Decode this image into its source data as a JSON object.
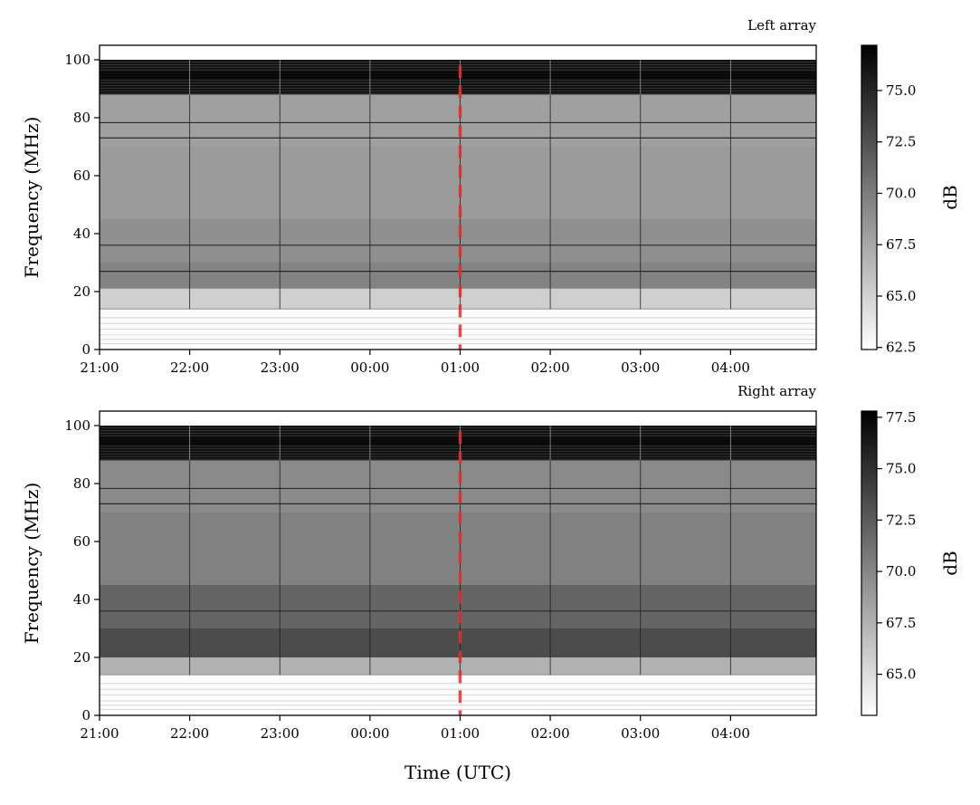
{
  "chart_data": [
    {
      "type": "heatmap",
      "title": "Left array",
      "xlabel": "",
      "ylabel": "Frequency (MHz)",
      "x_ticks": [
        "21:00",
        "22:00",
        "23:00",
        "00:00",
        "01:00",
        "02:00",
        "03:00",
        "04:00"
      ],
      "x_range_hours": [
        0,
        7.95
      ],
      "ylim": [
        0,
        105
      ],
      "y_ticks": [
        0,
        20,
        40,
        60,
        80,
        100
      ],
      "colormap": "gray_r",
      "colorbar": {
        "label": "dB",
        "range": [
          62.4,
          77.2
        ],
        "ticks": [
          62.5,
          65.0,
          67.5,
          70.0,
          72.5,
          75.0
        ]
      },
      "marker_line": {
        "time": "01:00",
        "color": "#e03030",
        "style": "dashed"
      },
      "bands": [
        {
          "from": 0,
          "to": 14,
          "db": 62.6
        },
        {
          "from": 14,
          "to": 21,
          "db": 65.2
        },
        {
          "from": 21,
          "to": 30,
          "db": 69.6
        },
        {
          "from": 30,
          "to": 45,
          "db": 68.9
        },
        {
          "from": 45,
          "to": 70,
          "db": 68.2
        },
        {
          "from": 70,
          "to": 88,
          "db": 67.9
        },
        {
          "from": 88,
          "to": 100,
          "db": 76.2
        }
      ],
      "lines_mhz": [
        27,
        36,
        73,
        78.3
      ],
      "vertical_events": [
        "22:00",
        "23:00",
        "00:00",
        "01:00",
        "02:00",
        "03:00",
        "04:00"
      ]
    },
    {
      "type": "heatmap",
      "title": "Right array",
      "xlabel": "Time (UTC)",
      "ylabel": "Frequency (MHz)",
      "x_ticks": [
        "21:00",
        "22:00",
        "23:00",
        "00:00",
        "01:00",
        "02:00",
        "03:00",
        "04:00"
      ],
      "x_range_hours": [
        0,
        7.95
      ],
      "ylim": [
        0,
        105
      ],
      "y_ticks": [
        0,
        20,
        40,
        60,
        80,
        100
      ],
      "colormap": "gray_r",
      "colorbar": {
        "label": "dB",
        "range": [
          63.0,
          77.8
        ],
        "ticks": [
          65.0,
          67.5,
          70.0,
          72.5,
          75.0,
          77.5
        ]
      },
      "marker_line": {
        "time": "01:00",
        "color": "#e03030",
        "style": "dashed"
      },
      "bands": [
        {
          "from": 0,
          "to": 14,
          "db": 63.1
        },
        {
          "from": 14,
          "to": 20,
          "db": 67.5
        },
        {
          "from": 20,
          "to": 30,
          "db": 73.4
        },
        {
          "from": 30,
          "to": 45,
          "db": 72.0
        },
        {
          "from": 45,
          "to": 70,
          "db": 70.3
        },
        {
          "from": 70,
          "to": 88,
          "db": 69.8
        },
        {
          "from": 88,
          "to": 100,
          "db": 76.9
        }
      ],
      "lines_mhz": [
        36,
        73,
        78.3
      ],
      "vertical_events": [
        "22:00",
        "23:00",
        "00:00",
        "01:00",
        "02:00",
        "03:00",
        "04:00"
      ]
    }
  ]
}
